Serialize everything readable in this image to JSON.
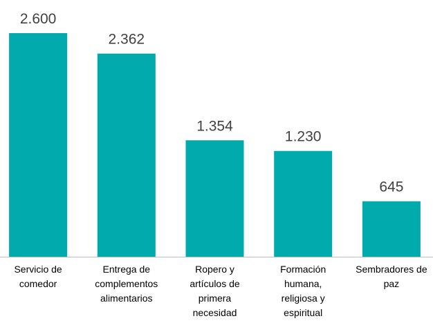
{
  "chart_data": {
    "type": "bar",
    "categories": [
      "Servicio de comedor",
      "Entrega de complementos alimentarios",
      "Ropero y artículos de primera necesidad",
      "Formación humana, religiosa y espiritual",
      "Sembradores de paz"
    ],
    "values": [
      2600,
      2362,
      1354,
      1230,
      645
    ],
    "value_labels": [
      "2.600",
      "2.362",
      "1.354",
      "1.230",
      "645"
    ],
    "color": "#00aaad"
  }
}
